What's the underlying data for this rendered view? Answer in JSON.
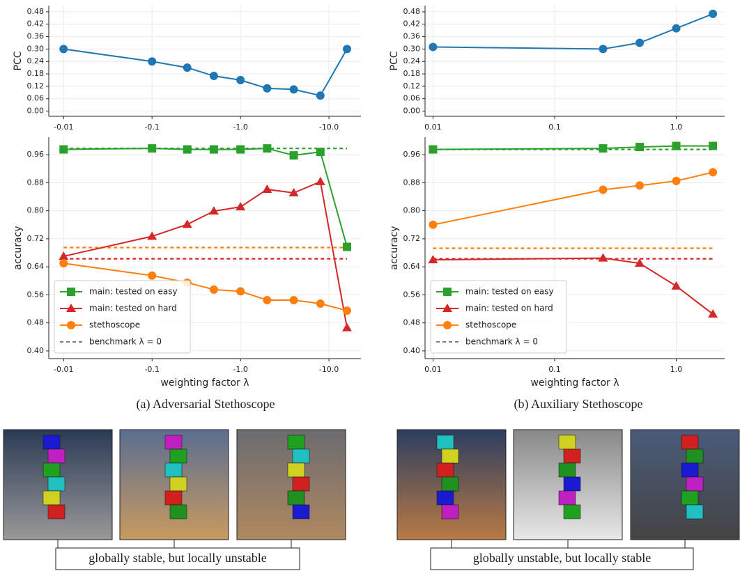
{
  "chart_data": [
    {
      "type": "line",
      "ylabel": "PCC",
      "x": [
        -0.01,
        -0.1,
        -0.25,
        -0.5,
        -1,
        -2,
        -4,
        -8,
        -16
      ],
      "xscale": "log",
      "xlim": [
        -0.0068,
        -23
      ],
      "xticks": [
        -0.01,
        -0.1,
        {
          "value": -1,
          "label": "-1.0"
        },
        {
          "value": -10,
          "label": "-10.0"
        }
      ],
      "ylim": [
        -0.025,
        0.51
      ],
      "yticks": [
        0.0,
        0.06,
        0.12,
        0.18,
        0.24,
        0.3,
        0.36,
        0.42,
        0.48
      ],
      "yticks_labels": [
        "0.00",
        "0.06",
        "0.12",
        "0.18",
        "0.24",
        "0.30",
        "0.36",
        "0.42",
        "0.48"
      ],
      "grid": true,
      "series": [
        {
          "color": "#1f77b4",
          "marker": "circle",
          "values": [
            0.3,
            0.24,
            0.21,
            0.17,
            0.15,
            0.11,
            0.105,
            0.075,
            0.3
          ]
        }
      ]
    },
    {
      "type": "line",
      "ylabel": "accuracy",
      "xlabel": "weighting factor λ",
      "x": [
        -0.01,
        -0.1,
        -0.25,
        -0.5,
        -1,
        -2,
        -4,
        -8,
        -16
      ],
      "xscale": "log",
      "xlim": [
        -0.0068,
        -23
      ],
      "xticks": [
        -0.01,
        -0.1,
        {
          "value": -1,
          "label": "-1.0"
        },
        {
          "value": -10,
          "label": "-10.0"
        }
      ],
      "ylim": [
        0.378,
        1.01
      ],
      "yticks": [
        0.4,
        0.48,
        0.56,
        0.64,
        0.72,
        0.8,
        0.88,
        0.96
      ],
      "yticks_labels": [
        "0.40",
        "0.48",
        "0.56",
        "0.64",
        "0.72",
        "0.80",
        "0.88",
        "0.96"
      ],
      "grid": true,
      "legend": "lower left",
      "benchmark_name": "benchmark λ = 0",
      "benchmark_legend_color": "#7f7f7f",
      "series": [
        {
          "name": "main: tested on easy",
          "color": "#2ca02c",
          "marker": "square",
          "benchmark": 0.978,
          "values": [
            0.975,
            0.978,
            0.975,
            0.975,
            0.975,
            0.978,
            0.958,
            0.968,
            0.697
          ]
        },
        {
          "name": "main: tested on hard",
          "color": "#d62728",
          "marker": "triangle",
          "benchmark": 0.663,
          "values": [
            0.67,
            0.727,
            0.761,
            0.799,
            0.811,
            0.861,
            0.851,
            0.883,
            0.466
          ]
        },
        {
          "name": "stethoscope",
          "color": "#ff7f0e",
          "marker": "circle",
          "benchmark": 0.695,
          "values": [
            0.65,
            0.615,
            0.595,
            0.575,
            0.57,
            0.545,
            0.545,
            0.535,
            0.515
          ]
        }
      ]
    },
    {
      "type": "line",
      "ylabel": "PCC",
      "x": [
        0.01,
        0.25,
        0.5,
        1,
        2
      ],
      "xscale": "log",
      "xlim": [
        0.0086,
        2.5
      ],
      "xticks": [
        0.01,
        0.1,
        {
          "value": 1,
          "label": "1.0"
        }
      ],
      "ylim": [
        -0.025,
        0.51
      ],
      "yticks": [
        0.0,
        0.06,
        0.12,
        0.18,
        0.24,
        0.3,
        0.36,
        0.42,
        0.48
      ],
      "yticks_labels": [
        "0.00",
        "0.06",
        "0.12",
        "0.18",
        "0.24",
        "0.30",
        "0.36",
        "0.42",
        "0.48"
      ],
      "grid": true,
      "series": [
        {
          "color": "#1f77b4",
          "marker": "circle",
          "values": [
            0.31,
            0.3,
            0.33,
            0.4,
            0.47
          ]
        }
      ]
    },
    {
      "type": "line",
      "ylabel": "accuracy",
      "xlabel": "weighting factor λ",
      "x": [
        0.01,
        0.25,
        0.5,
        1,
        2
      ],
      "xscale": "log",
      "xlim": [
        0.0086,
        2.5
      ],
      "xticks": [
        0.01,
        0.1,
        {
          "value": 1,
          "label": "1.0"
        }
      ],
      "ylim": [
        0.378,
        1.01
      ],
      "yticks": [
        0.4,
        0.48,
        0.56,
        0.64,
        0.72,
        0.8,
        0.88,
        0.96
      ],
      "yticks_labels": [
        "0.40",
        "0.48",
        "0.56",
        "0.64",
        "0.72",
        "0.80",
        "0.88",
        "0.96"
      ],
      "grid": true,
      "legend": "lower left",
      "benchmark_name": "benchmark λ = 0",
      "benchmark_legend_color": "#7f7f7f",
      "series": [
        {
          "name": "main: tested on easy",
          "color": "#2ca02c",
          "marker": "square",
          "benchmark": 0.975,
          "values": [
            0.975,
            0.978,
            0.982,
            0.985,
            0.985
          ]
        },
        {
          "name": "main: tested on hard",
          "color": "#d62728",
          "marker": "triangle",
          "benchmark": 0.663,
          "values": [
            0.66,
            0.665,
            0.65,
            0.585,
            0.505
          ]
        },
        {
          "name": "stethoscope",
          "color": "#ff7f0e",
          "marker": "circle",
          "benchmark": 0.693,
          "values": [
            0.76,
            0.86,
            0.872,
            0.885,
            0.91
          ]
        }
      ]
    }
  ],
  "captions": [
    "(a) Adversarial Stethoscope",
    "(b) Auxiliary Stethoscope"
  ],
  "image_labels": [
    "globally stable, but locally unstable",
    "globally unstable, but locally stable"
  ]
}
